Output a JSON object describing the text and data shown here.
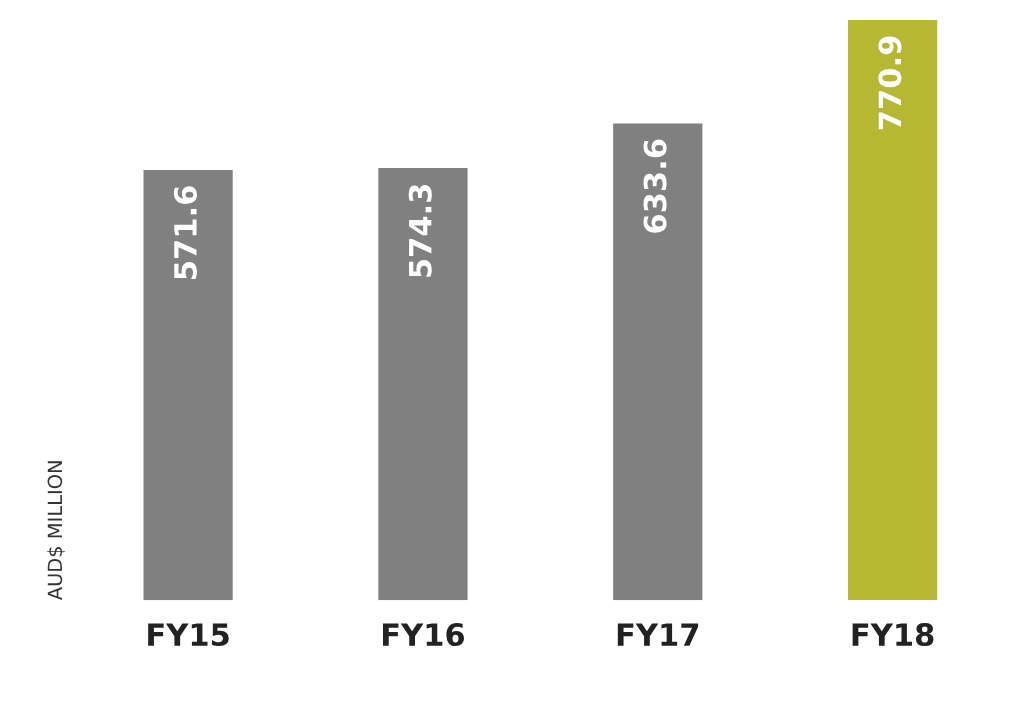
{
  "chart_data": {
    "type": "bar",
    "ylabel": "AUD$ MILLION",
    "categories": [
      "FY15",
      "FY16",
      "FY17",
      "FY18"
    ],
    "values": [
      571.6,
      574.3,
      633.6,
      770.9
    ],
    "colors": [
      "#808080",
      "#808080",
      "#808080",
      "#b6b834"
    ],
    "data_labels": true,
    "grid": false,
    "legend": false
  }
}
